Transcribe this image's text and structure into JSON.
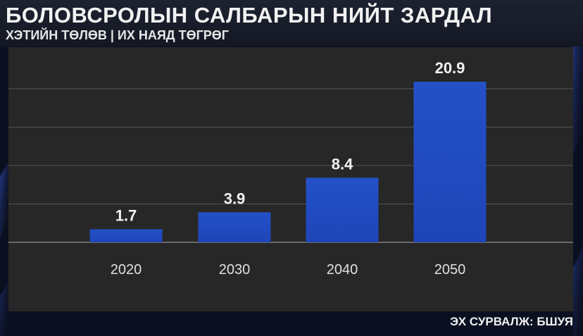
{
  "header": {
    "title": "БОЛОВСРОЛЫН САЛБАРЫН НИЙТ ЗАРДАЛ",
    "subtitle": "ХЭТИЙН ТӨЛӨВ | ИХ НАЯД ТӨГРӨГ"
  },
  "footer": {
    "source": "ЭХ СУРВАЛЖ: БШУЯ"
  },
  "colors": {
    "bar": "#1e45b8",
    "panel": "#272727",
    "grid": "#555555",
    "label": "#f2f2f2",
    "tick": "#e0e0e0"
  },
  "chart_data": {
    "type": "bar",
    "categories": [
      "2020",
      "2030",
      "2040",
      "2050"
    ],
    "values": [
      1.7,
      3.9,
      8.4,
      20.9
    ],
    "data_labels": [
      "1.7",
      "3.9",
      "8.4",
      "20.9"
    ],
    "ylim": [
      0,
      22
    ],
    "grid": true
  }
}
